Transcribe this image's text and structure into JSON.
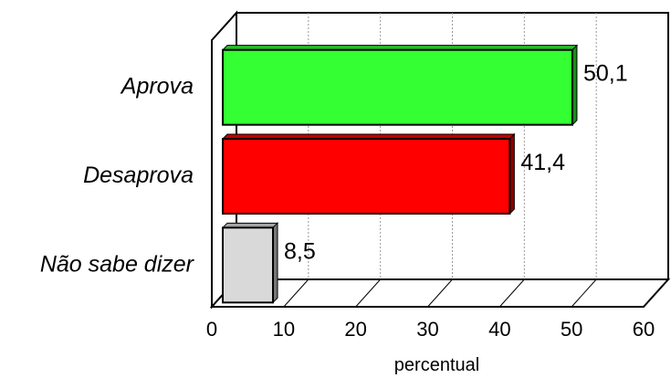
{
  "chart_data": {
    "type": "bar",
    "orientation": "horizontal",
    "categories": [
      "Aprova",
      "Desaprova",
      "Não sabe dizer"
    ],
    "values": [
      50.1,
      41.4,
      8.5
    ],
    "value_labels": [
      "50,1",
      "41,4",
      "8,5"
    ],
    "colors": [
      "#33ff33",
      "#ff0000",
      "#d9d9d9"
    ],
    "xlabel": "percentual",
    "ylabel": "",
    "title": "",
    "xlim": [
      0,
      60
    ],
    "xticks": [
      0,
      10,
      20,
      30,
      40,
      50,
      60
    ],
    "grid": true,
    "legend": "none"
  }
}
